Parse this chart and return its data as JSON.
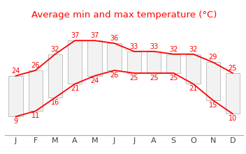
{
  "title": "Average min and max temperature (°C)",
  "months": [
    "J",
    "F",
    "M",
    "A",
    "M",
    "J",
    "J",
    "A",
    "S",
    "O",
    "N",
    "D"
  ],
  "high": [
    24,
    26,
    32,
    37,
    37,
    36,
    33,
    33,
    32,
    32,
    29,
    25
  ],
  "low": [
    9,
    11,
    16,
    21,
    24,
    26,
    25,
    25,
    25,
    21,
    15,
    10
  ],
  "bar_color": "#f2f2f2",
  "bar_edge_color": "#bfbfbf",
  "line_color": "#ff0000",
  "label_color": "#ff0000",
  "title_color": "#ff0000",
  "background_color": "#ffffff",
  "ylim_min": 2,
  "ylim_max": 44,
  "title_fontsize": 9.5,
  "label_fontsize": 7.0,
  "tick_fontsize": 8.0,
  "bar_width": 0.72
}
